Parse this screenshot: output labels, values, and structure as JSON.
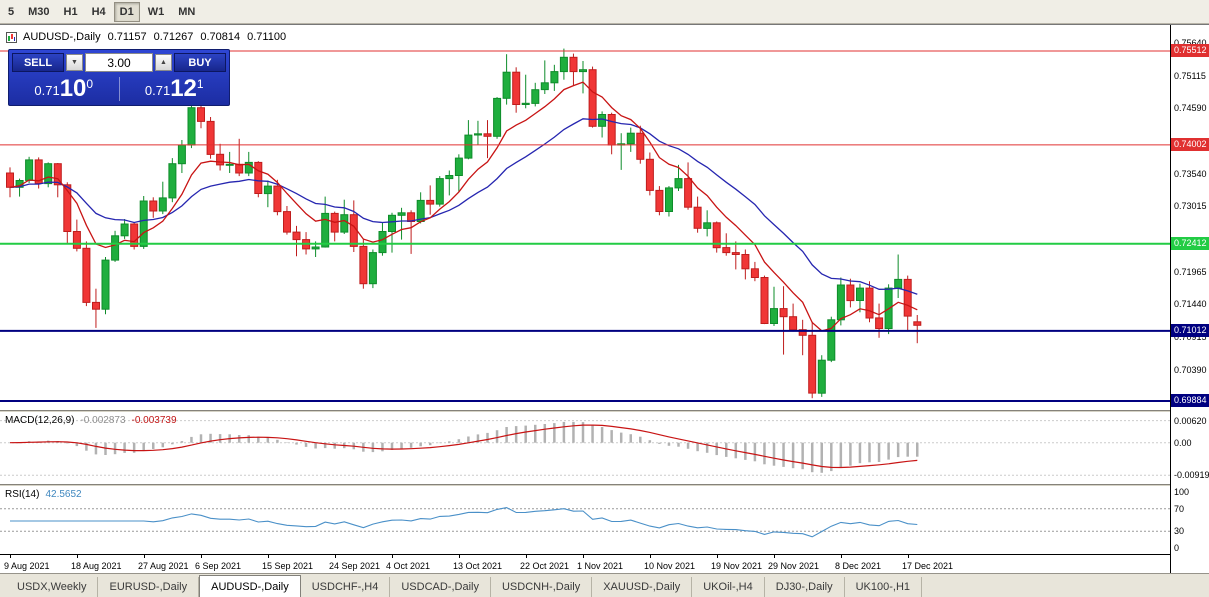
{
  "toolbar": {
    "timeframes": [
      {
        "label": "5",
        "active": false
      },
      {
        "label": "M30",
        "active": false
      },
      {
        "label": "H1",
        "active": false
      },
      {
        "label": "H4",
        "active": false
      },
      {
        "label": "D1",
        "active": true
      },
      {
        "label": "W1",
        "active": false
      },
      {
        "label": "MN",
        "active": false
      }
    ]
  },
  "chart_header": {
    "title": "AUDUSD-,Daily",
    "open": "0.71157",
    "high": "0.71267",
    "low": "0.70814",
    "close": "0.71100"
  },
  "trade_panel": {
    "sell_label": "SELL",
    "buy_label": "BUY",
    "volume": "3.00",
    "volume_down_icon": "▼",
    "volume_up_icon": "▲",
    "sell_price": {
      "prefix": "0.71",
      "big": "10",
      "sup": "0"
    },
    "buy_price": {
      "prefix": "0.71",
      "big": "12",
      "sup": "1"
    }
  },
  "macd_panel": {
    "title": "MACD(12,26,9)",
    "main_value": "-0.002873",
    "signal_value": "-0.003739",
    "axis_labels": [
      {
        "text": "0.00620",
        "v": 0.0062
      },
      {
        "text": "0.00",
        "v": 0
      },
      {
        "text": "-0.00919",
        "v": -0.00919
      }
    ]
  },
  "rsi_panel": {
    "title": "RSI(14)",
    "value": "42.5652",
    "axis_labels": [
      {
        "text": "100",
        "v": 100
      },
      {
        "text": "70",
        "v": 70
      },
      {
        "text": "30",
        "v": 30
      },
      {
        "text": "0",
        "v": 0
      }
    ],
    "dashed_levels": [
      70,
      30
    ]
  },
  "tabs": [
    {
      "label": "USDX,Weekly",
      "active": false
    },
    {
      "label": "EURUSD-,Daily",
      "active": false
    },
    {
      "label": "AUDUSD-,Daily",
      "active": true
    },
    {
      "label": "USDCHF-,H4",
      "active": false
    },
    {
      "label": "USDCAD-,Daily",
      "active": false
    },
    {
      "label": "USDCNH-,Daily",
      "active": false
    },
    {
      "label": "XAUUSD-,Daily",
      "active": false
    },
    {
      "label": "UKOil-,H4",
      "active": false
    },
    {
      "label": "DJ30-,Daily",
      "active": false
    },
    {
      "label": "UK100-,H1",
      "active": false
    }
  ],
  "chart_data": {
    "type": "candlestick",
    "symbol": "AUDUSD-",
    "timeframe": "Daily",
    "last_candle": {
      "open": 0.71157,
      "high": 0.71267,
      "low": 0.70814,
      "close": 0.711
    },
    "colors": {
      "up_fill": "#1fae3e",
      "up_stroke": "#0e8c2a",
      "down_fill": "#f03636",
      "down_stroke": "#bf1d1d",
      "ma_fast": "#c81414",
      "ma_slow": "#2626b0",
      "macd_hist": "#b2b2b2",
      "macd_signal": "#c81414",
      "rsi_line": "#4a90c8"
    },
    "indicators": {
      "ma_fast_period": 8,
      "ma_slow_period": 20,
      "macd": [
        12,
        26,
        9
      ],
      "rsi_period": 14
    },
    "price_grid_labels": [
      {
        "text": "0.75640",
        "p": 0.7564
      },
      {
        "text": "0.75115",
        "p": 0.75115
      },
      {
        "text": "0.74590",
        "p": 0.7459
      },
      {
        "text": "0.73540",
        "p": 0.7354
      },
      {
        "text": "0.73015",
        "p": 0.73015
      },
      {
        "text": "0.71965",
        "p": 0.71965
      },
      {
        "text": "0.71440",
        "p": 0.7144
      },
      {
        "text": "0.70915",
        "p": 0.70915
      },
      {
        "text": "0.70390",
        "p": 0.7039
      }
    ],
    "level_tags": [
      {
        "text": "0.75512",
        "p": 0.75512,
        "bg": "#e03030"
      },
      {
        "text": "0.74002",
        "p": 0.74002,
        "bg": "#e03030"
      },
      {
        "text": "0.72412",
        "p": 0.72412,
        "bg": "#22cc44"
      },
      {
        "text": "0.71012",
        "p": 0.71012,
        "bg": "#000080"
      },
      {
        "text": "0.69884",
        "p": 0.69884,
        "bg": "#000080"
      }
    ],
    "levels": [
      {
        "p": 0.75512,
        "color": "#e03030",
        "w": 1
      },
      {
        "p": 0.74002,
        "color": "#e03030",
        "w": 1
      },
      {
        "p": 0.72412,
        "color": "#22cc44",
        "w": 2
      },
      {
        "p": 0.71012,
        "color": "#000080",
        "w": 2
      },
      {
        "p": 0.69884,
        "color": "#000080",
        "w": 2
      }
    ],
    "date_labels": [
      {
        "text": "9 Aug 2021",
        "i": 0
      },
      {
        "text": "18 Aug 2021",
        "i": 7
      },
      {
        "text": "27 Aug 2021",
        "i": 14
      },
      {
        "text": "6 Sep 2021",
        "i": 20
      },
      {
        "text": "15 Sep 2021",
        "i": 27
      },
      {
        "text": "24 Sep 2021",
        "i": 34
      },
      {
        "text": "4 Oct 2021",
        "i": 40
      },
      {
        "text": "13 Oct 2021",
        "i": 47
      },
      {
        "text": "22 Oct 2021",
        "i": 54
      },
      {
        "text": "1 Nov 2021",
        "i": 60
      },
      {
        "text": "10 Nov 2021",
        "i": 67
      },
      {
        "text": "19 Nov 2021",
        "i": 74
      },
      {
        "text": "29 Nov 2021",
        "i": 80
      },
      {
        "text": "8 Dec 2021",
        "i": 87
      },
      {
        "text": "17 Dec 2021",
        "i": 94
      }
    ],
    "candles": [
      [
        0.7355,
        0.7364,
        0.7316,
        0.7332
      ],
      [
        0.7332,
        0.7346,
        0.7317,
        0.7343
      ],
      [
        0.7343,
        0.7381,
        0.7339,
        0.7376
      ],
      [
        0.7376,
        0.738,
        0.733,
        0.7338
      ],
      [
        0.7338,
        0.7372,
        0.7332,
        0.737
      ],
      [
        0.737,
        0.7371,
        0.7316,
        0.7336
      ],
      [
        0.7336,
        0.734,
        0.724,
        0.7261
      ],
      [
        0.7261,
        0.728,
        0.7229,
        0.7234
      ],
      [
        0.7234,
        0.7245,
        0.7141,
        0.7147
      ],
      [
        0.7147,
        0.7169,
        0.7106,
        0.7136
      ],
      [
        0.7136,
        0.722,
        0.7128,
        0.7215
      ],
      [
        0.7215,
        0.7262,
        0.7212,
        0.7254
      ],
      [
        0.7254,
        0.7281,
        0.7249,
        0.7273
      ],
      [
        0.7273,
        0.7276,
        0.7232,
        0.7237
      ],
      [
        0.7237,
        0.7318,
        0.7233,
        0.731
      ],
      [
        0.731,
        0.7316,
        0.7283,
        0.7294
      ],
      [
        0.7294,
        0.7341,
        0.7289,
        0.7315
      ],
      [
        0.7315,
        0.7379,
        0.7308,
        0.737
      ],
      [
        0.737,
        0.7408,
        0.7355,
        0.74
      ],
      [
        0.74,
        0.7478,
        0.7395,
        0.746
      ],
      [
        0.746,
        0.7468,
        0.7427,
        0.7438
      ],
      [
        0.7438,
        0.7445,
        0.7378,
        0.7385
      ],
      [
        0.7385,
        0.7402,
        0.7359,
        0.7368
      ],
      [
        0.7368,
        0.7389,
        0.7355,
        0.7369
      ],
      [
        0.7369,
        0.741,
        0.735,
        0.7355
      ],
      [
        0.7355,
        0.7389,
        0.735,
        0.7372
      ],
      [
        0.7372,
        0.7374,
        0.7316,
        0.7322
      ],
      [
        0.7322,
        0.7343,
        0.73,
        0.7334
      ],
      [
        0.7334,
        0.7344,
        0.7287,
        0.7293
      ],
      [
        0.7293,
        0.7302,
        0.7256,
        0.726
      ],
      [
        0.726,
        0.727,
        0.7221,
        0.7248
      ],
      [
        0.7248,
        0.726,
        0.7224,
        0.7233
      ],
      [
        0.7233,
        0.7245,
        0.722,
        0.7236
      ],
      [
        0.7236,
        0.7317,
        0.7235,
        0.729
      ],
      [
        0.729,
        0.7293,
        0.7245,
        0.726
      ],
      [
        0.726,
        0.7312,
        0.7257,
        0.7288
      ],
      [
        0.7288,
        0.7311,
        0.7228,
        0.7237
      ],
      [
        0.7237,
        0.7248,
        0.7169,
        0.7177
      ],
      [
        0.7177,
        0.7232,
        0.717,
        0.7227
      ],
      [
        0.7227,
        0.7275,
        0.7222,
        0.7261
      ],
      [
        0.7261,
        0.7291,
        0.7227,
        0.7287
      ],
      [
        0.7287,
        0.7299,
        0.7248,
        0.7291
      ],
      [
        0.7291,
        0.7295,
        0.7225,
        0.7277
      ],
      [
        0.7277,
        0.7324,
        0.7274,
        0.7311
      ],
      [
        0.7311,
        0.7335,
        0.7288,
        0.7305
      ],
      [
        0.7305,
        0.735,
        0.7301,
        0.7346
      ],
      [
        0.7346,
        0.7359,
        0.7319,
        0.7351
      ],
      [
        0.7351,
        0.7385,
        0.7324,
        0.7379
      ],
      [
        0.7379,
        0.744,
        0.7377,
        0.7416
      ],
      [
        0.7416,
        0.7439,
        0.74,
        0.7418
      ],
      [
        0.7418,
        0.744,
        0.7379,
        0.7414
      ],
      [
        0.7414,
        0.7477,
        0.741,
        0.7475
      ],
      [
        0.7475,
        0.7546,
        0.7465,
        0.7517
      ],
      [
        0.7517,
        0.7525,
        0.7452,
        0.7465
      ],
      [
        0.7465,
        0.7513,
        0.7459,
        0.7467
      ],
      [
        0.7467,
        0.75,
        0.7462,
        0.7489
      ],
      [
        0.7489,
        0.7536,
        0.7482,
        0.75
      ],
      [
        0.75,
        0.7529,
        0.7487,
        0.7518
      ],
      [
        0.7518,
        0.7555,
        0.7505,
        0.7541
      ],
      [
        0.7541,
        0.7547,
        0.7496,
        0.7518
      ],
      [
        0.7518,
        0.7535,
        0.7483,
        0.7521
      ],
      [
        0.7521,
        0.7526,
        0.7428,
        0.743
      ],
      [
        0.743,
        0.7454,
        0.7412,
        0.7449
      ],
      [
        0.7449,
        0.7452,
        0.7385,
        0.74
      ],
      [
        0.74,
        0.7419,
        0.736,
        0.7402
      ],
      [
        0.7402,
        0.7428,
        0.7389,
        0.7419
      ],
      [
        0.7419,
        0.7431,
        0.737,
        0.7377
      ],
      [
        0.7377,
        0.7388,
        0.7319,
        0.7327
      ],
      [
        0.7327,
        0.7334,
        0.7287,
        0.7293
      ],
      [
        0.7293,
        0.7334,
        0.7285,
        0.7331
      ],
      [
        0.7331,
        0.7368,
        0.7326,
        0.7346
      ],
      [
        0.7346,
        0.7372,
        0.7296,
        0.73
      ],
      [
        0.73,
        0.7317,
        0.7259,
        0.7266
      ],
      [
        0.7266,
        0.7295,
        0.7253,
        0.7275
      ],
      [
        0.7275,
        0.7277,
        0.7227,
        0.7235
      ],
      [
        0.7235,
        0.7258,
        0.7222,
        0.7227
      ],
      [
        0.7227,
        0.7245,
        0.72,
        0.7224
      ],
      [
        0.7224,
        0.7232,
        0.7184,
        0.7201
      ],
      [
        0.7201,
        0.7212,
        0.7181,
        0.7187
      ],
      [
        0.7187,
        0.719,
        0.7112,
        0.7113
      ],
      [
        0.7113,
        0.7172,
        0.7109,
        0.7137
      ],
      [
        0.7137,
        0.7173,
        0.7063,
        0.7124
      ],
      [
        0.7124,
        0.7145,
        0.71,
        0.7103
      ],
      [
        0.7103,
        0.7119,
        0.7062,
        0.7094
      ],
      [
        0.7094,
        0.7116,
        0.6993,
        0.7001
      ],
      [
        0.7001,
        0.7062,
        0.6995,
        0.7054
      ],
      [
        0.7054,
        0.7124,
        0.7051,
        0.7119
      ],
      [
        0.7119,
        0.7187,
        0.711,
        0.7175
      ],
      [
        0.7175,
        0.7185,
        0.7139,
        0.715
      ],
      [
        0.715,
        0.7177,
        0.7131,
        0.717
      ],
      [
        0.717,
        0.7181,
        0.7115,
        0.7122
      ],
      [
        0.7122,
        0.7145,
        0.709,
        0.7105
      ],
      [
        0.7105,
        0.7176,
        0.7096,
        0.717
      ],
      [
        0.717,
        0.7224,
        0.7154,
        0.7184
      ],
      [
        0.7184,
        0.719,
        0.71,
        0.7125
      ],
      [
        0.71157,
        0.71267,
        0.70814,
        0.711
      ]
    ]
  }
}
